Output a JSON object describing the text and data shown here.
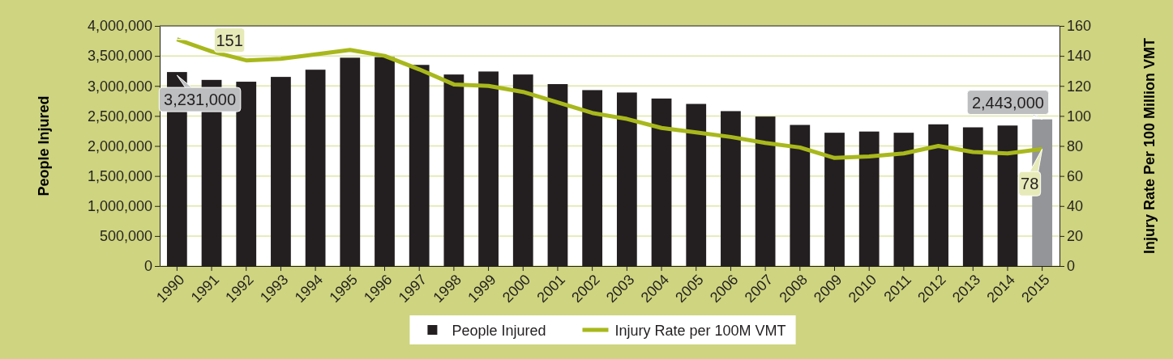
{
  "chart_data": {
    "type": "bar",
    "ylabel": "People Injured",
    "y2label": "Injury Rate Per 100 Million VMT",
    "categories": [
      "1990",
      "1991",
      "1992",
      "1993",
      "1994",
      "1995",
      "1996",
      "1997",
      "1998",
      "1999",
      "2000",
      "2001",
      "2002",
      "2003",
      "2004",
      "2005",
      "2006",
      "2007",
      "2008",
      "2009",
      "2010",
      "2011",
      "2012",
      "2013",
      "2014",
      "2015"
    ],
    "series": [
      {
        "name": "People Injured",
        "color": "#231f20",
        "colors": [
          "#231f20",
          "#231f20",
          "#231f20",
          "#231f20",
          "#231f20",
          "#231f20",
          "#231f20",
          "#231f20",
          "#231f20",
          "#231f20",
          "#231f20",
          "#231f20",
          "#231f20",
          "#231f20",
          "#231f20",
          "#231f20",
          "#231f20",
          "#231f20",
          "#231f20",
          "#231f20",
          "#231f20",
          "#231f20",
          "#231f20",
          "#231f20",
          "#231f20",
          "#939598"
        ],
        "values": [
          3231000,
          3100000,
          3070000,
          3150000,
          3270000,
          3470000,
          3480000,
          3350000,
          3190000,
          3240000,
          3190000,
          3030000,
          2930000,
          2890000,
          2790000,
          2700000,
          2580000,
          2490000,
          2350000,
          2220000,
          2240000,
          2220000,
          2360000,
          2310000,
          2340000,
          2443000
        ],
        "value_labels": [
          "3,231,000",
          null,
          null,
          null,
          null,
          null,
          null,
          null,
          null,
          null,
          null,
          null,
          null,
          null,
          null,
          null,
          null,
          null,
          null,
          null,
          null,
          null,
          null,
          null,
          null,
          "2,443,000"
        ]
      },
      {
        "name": "Injury Rate per 100M VMT",
        "type": "line",
        "axis": "y2",
        "color": "#a8b81c",
        "values": [
          151,
          143,
          137,
          138,
          141,
          144,
          140,
          131,
          121,
          120,
          116,
          109,
          102,
          98,
          92,
          89,
          86,
          82,
          79,
          72,
          73,
          75,
          80,
          76,
          75,
          78
        ],
        "value_labels": [
          "151",
          null,
          null,
          null,
          null,
          null,
          null,
          null,
          null,
          null,
          null,
          null,
          null,
          null,
          null,
          null,
          null,
          null,
          null,
          null,
          null,
          null,
          null,
          null,
          null,
          "78"
        ]
      }
    ],
    "ylim": [
      0,
      4000000
    ],
    "yticks": [
      {
        "value": 0,
        "label": "0"
      },
      {
        "value": 500000,
        "label": "500,000"
      },
      {
        "value": 1000000,
        "label": "1,000,000"
      },
      {
        "value": 1500000,
        "label": "1,500,000"
      },
      {
        "value": 2000000,
        "label": "2,000,000"
      },
      {
        "value": 2500000,
        "label": "2,500,000"
      },
      {
        "value": 3000000,
        "label": "3,000,000"
      },
      {
        "value": 3500000,
        "label": "3,500,000"
      },
      {
        "value": 4000000,
        "label": "4,000,000"
      }
    ],
    "y2lim": [
      0,
      160
    ],
    "y2ticks": [
      0,
      20,
      40,
      60,
      80,
      100,
      120,
      140,
      160
    ],
    "grid": "y",
    "legend": "bottom",
    "marker": "none",
    "line_style": "solid"
  }
}
